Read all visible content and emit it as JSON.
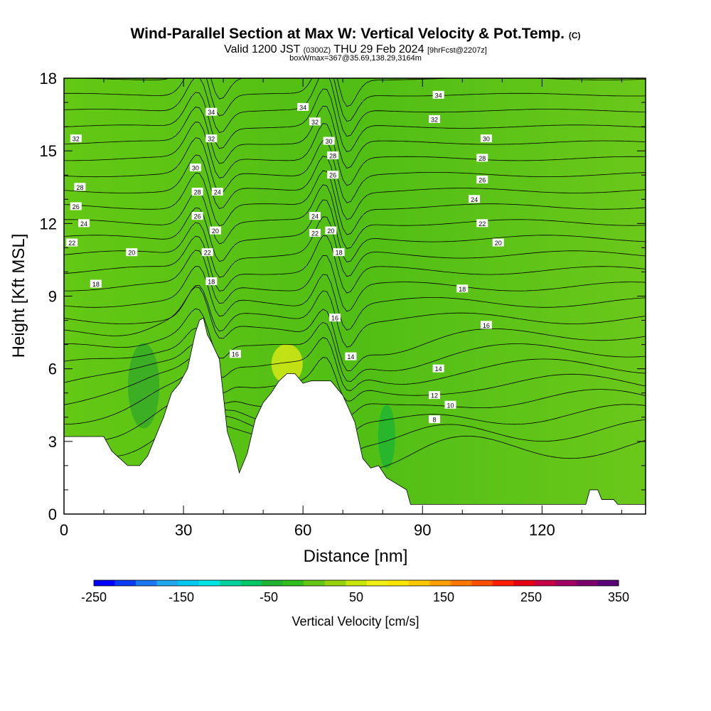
{
  "chart_data": {
    "type": "heatmap",
    "title": "Wind-Parallel Section at Max W: Vertical Velocity & Pot.Temp.",
    "title_tag": "(C)",
    "subtitle_main": "Valid 1200 JST",
    "subtitle_utc": "(0300Z)",
    "subtitle_date": "THU 29 Feb 2024",
    "subtitle_fcst": "[9hrFcst@2207z]",
    "subtitle2": "boxWmax=367@35.69,138.29,3164m",
    "xlabel": "Distance [nm]",
    "ylabel": "Height [Kft MSL]",
    "xlim": [
      0,
      146
    ],
    "ylim": [
      0,
      18
    ],
    "x_ticks": [
      "0",
      "30",
      "60",
      "90",
      "120"
    ],
    "y_ticks": [
      "0",
      "3",
      "6",
      "9",
      "12",
      "15",
      "18"
    ],
    "colorbar": {
      "label": "Vertical Velocity [cm/s]",
      "tick_labels": [
        "-250",
        "-150",
        "-50",
        "50",
        "150",
        "250",
        "350"
      ],
      "colors": [
        "#0000ff",
        "#0a3cf5",
        "#1a78f0",
        "#1ea8ee",
        "#00c8f0",
        "#00e6e6",
        "#00d2a0",
        "#00c864",
        "#1eb432",
        "#32be1e",
        "#64c814",
        "#96d20a",
        "#c8e60a",
        "#f0f014",
        "#ffe600",
        "#ffc800",
        "#ffa000",
        "#ff7800",
        "#ff5000",
        "#ff1e00",
        "#e60014",
        "#c80046",
        "#a00064",
        "#7a006e",
        "#5a0078"
      ]
    },
    "terrain_kft": [
      [
        0,
        3.2
      ],
      [
        10,
        3.2
      ],
      [
        12,
        2.6
      ],
      [
        14,
        2.3
      ],
      [
        16,
        2.0
      ],
      [
        19,
        2.0
      ],
      [
        21,
        2.4
      ],
      [
        23,
        3.2
      ],
      [
        25,
        4.0
      ],
      [
        27,
        5.0
      ],
      [
        29,
        5.4
      ],
      [
        31,
        6.0
      ],
      [
        33,
        7.5
      ],
      [
        34,
        8.0
      ],
      [
        35,
        8.1
      ],
      [
        36,
        7.4
      ],
      [
        37,
        7.1
      ],
      [
        39,
        6.4
      ],
      [
        41,
        3.4
      ],
      [
        43,
        2.4
      ],
      [
        44,
        1.7
      ],
      [
        46,
        2.5
      ],
      [
        48,
        3.9
      ],
      [
        50,
        4.6
      ],
      [
        52,
        5.0
      ],
      [
        54,
        5.5
      ],
      [
        56,
        5.8
      ],
      [
        58,
        5.8
      ],
      [
        60,
        5.4
      ],
      [
        62,
        5.5
      ],
      [
        67,
        5.5
      ],
      [
        70,
        4.9
      ],
      [
        73,
        3.8
      ],
      [
        75,
        2.3
      ],
      [
        77,
        1.9
      ],
      [
        79,
        2.0
      ],
      [
        81,
        1.5
      ],
      [
        84,
        1.2
      ],
      [
        86,
        1.0
      ],
      [
        87,
        0.4
      ],
      [
        131,
        0.4
      ],
      [
        132,
        1.0
      ],
      [
        134,
        1.0
      ],
      [
        135,
        0.6
      ],
      [
        138,
        0.6
      ],
      [
        139,
        0.4
      ],
      [
        146,
        0.4
      ]
    ],
    "theta_labels": [
      {
        "x": 37,
        "y": 16.6,
        "text": "34"
      },
      {
        "x": 37,
        "y": 15.5,
        "text": "32"
      },
      {
        "x": 33,
        "y": 14.3,
        "text": "30"
      },
      {
        "x": 33.5,
        "y": 13.3,
        "text": "28"
      },
      {
        "x": 38.5,
        "y": 13.3,
        "text": "24"
      },
      {
        "x": 33.5,
        "y": 12.3,
        "text": "26"
      },
      {
        "x": 38,
        "y": 11.7,
        "text": "20"
      },
      {
        "x": 36,
        "y": 10.8,
        "text": "22"
      },
      {
        "x": 37,
        "y": 9.6,
        "text": "18"
      },
      {
        "x": 60,
        "y": 16.8,
        "text": "34"
      },
      {
        "x": 63,
        "y": 16.2,
        "text": "32"
      },
      {
        "x": 66.5,
        "y": 15.4,
        "text": "30"
      },
      {
        "x": 67.5,
        "y": 14.8,
        "text": "28"
      },
      {
        "x": 67.5,
        "y": 14.0,
        "text": "26"
      },
      {
        "x": 63,
        "y": 12.3,
        "text": "24"
      },
      {
        "x": 63,
        "y": 11.6,
        "text": "22"
      },
      {
        "x": 67,
        "y": 11.7,
        "text": "20"
      },
      {
        "x": 69,
        "y": 10.8,
        "text": "18"
      },
      {
        "x": 68,
        "y": 8.1,
        "text": "16"
      },
      {
        "x": 43,
        "y": 6.6,
        "text": "16"
      },
      {
        "x": 72,
        "y": 6.5,
        "text": "14"
      },
      {
        "x": 94,
        "y": 17.3,
        "text": "34"
      },
      {
        "x": 93,
        "y": 16.3,
        "text": "32"
      },
      {
        "x": 106,
        "y": 15.5,
        "text": "30"
      },
      {
        "x": 105,
        "y": 14.7,
        "text": "28"
      },
      {
        "x": 105,
        "y": 13.8,
        "text": "26"
      },
      {
        "x": 103,
        "y": 13.0,
        "text": "24"
      },
      {
        "x": 105,
        "y": 12.0,
        "text": "22"
      },
      {
        "x": 109,
        "y": 11.2,
        "text": "20"
      },
      {
        "x": 100,
        "y": 9.3,
        "text": "18"
      },
      {
        "x": 106,
        "y": 7.8,
        "text": "16"
      },
      {
        "x": 94,
        "y": 6.0,
        "text": "14"
      },
      {
        "x": 93,
        "y": 4.9,
        "text": "12"
      },
      {
        "x": 97,
        "y": 4.5,
        "text": "10"
      },
      {
        "x": 93,
        "y": 3.9,
        "text": "8"
      },
      {
        "x": 3,
        "y": 15.5,
        "text": "32"
      },
      {
        "x": 4,
        "y": 13.5,
        "text": "28"
      },
      {
        "x": 3,
        "y": 12.7,
        "text": "26"
      },
      {
        "x": 5,
        "y": 12.0,
        "text": "24"
      },
      {
        "x": 2,
        "y": 11.2,
        "text": "22"
      },
      {
        "x": 17,
        "y": 10.8,
        "text": "20"
      },
      {
        "x": 8,
        "y": 9.5,
        "text": "18"
      }
    ]
  }
}
